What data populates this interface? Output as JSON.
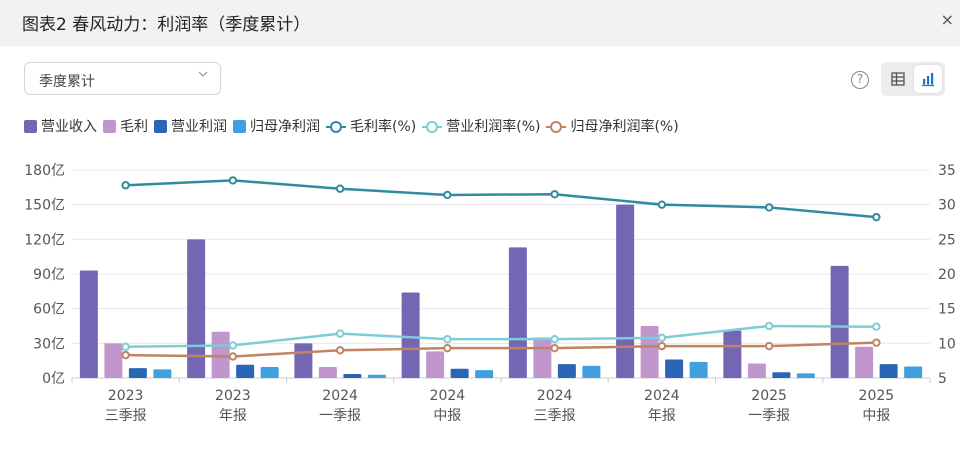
{
  "header": {
    "title": "图表2 春风动力：利润率（季度累计）",
    "close": "×"
  },
  "filter": {
    "selected": "季度累计"
  },
  "toolbar": {
    "help": "?"
  },
  "legend": [
    {
      "name": "营业收入",
      "kind": "bar",
      "color": "#7566b4"
    },
    {
      "name": "毛利",
      "kind": "bar",
      "color": "#c196cc"
    },
    {
      "name": "营业利润",
      "kind": "bar",
      "color": "#2a66b5"
    },
    {
      "name": "归母净利润",
      "kind": "bar",
      "color": "#3fa0e0"
    },
    {
      "name": "毛利率(%)",
      "kind": "line",
      "color": "#2f8ba0"
    },
    {
      "name": "营业利润率(%)",
      "kind": "line",
      "color": "#7dcdd6"
    },
    {
      "name": "归母净利润率(%)",
      "kind": "line",
      "color": "#c08560"
    }
  ],
  "chart_data": {
    "type": "bar+line",
    "categories": [
      [
        "2023",
        "三季报"
      ],
      [
        "2023",
        "年报"
      ],
      [
        "2024",
        "一季报"
      ],
      [
        "2024",
        "中报"
      ],
      [
        "2024",
        "三季报"
      ],
      [
        "2024",
        "年报"
      ],
      [
        "2025",
        "一季报"
      ],
      [
        "2025",
        "中报"
      ]
    ],
    "y_left": {
      "ticks": [
        "0亿",
        "30亿",
        "60亿",
        "90亿",
        "120亿",
        "150亿",
        "180亿"
      ],
      "min": 0,
      "max": 180
    },
    "y_right": {
      "ticks": [
        "5",
        "10",
        "15",
        "20",
        "25",
        "30",
        "35"
      ],
      "min": 5,
      "max": 35
    },
    "bar_series": [
      {
        "name": "营业收入",
        "color": "#7566b4",
        "values": [
          93,
          120,
          30,
          74,
          113,
          150,
          41,
          97
        ]
      },
      {
        "name": "毛利",
        "color": "#c196cc",
        "values": [
          30,
          40,
          9.5,
          23,
          35,
          45,
          12.5,
          27
        ]
      },
      {
        "name": "营业利润",
        "color": "#2a66b5",
        "values": [
          8.5,
          11.5,
          3.5,
          8,
          12,
          16,
          5,
          12
        ]
      },
      {
        "name": "归母净利润",
        "color": "#3fa0e0",
        "values": [
          7.5,
          9.5,
          2.8,
          6.8,
          10.5,
          14,
          4,
          10
        ]
      }
    ],
    "line_series": [
      {
        "name": "毛利率(%)",
        "color": "#2f8ba0",
        "values": [
          32.8,
          33.5,
          32.3,
          31.4,
          31.5,
          30.0,
          29.6,
          28.2
        ]
      },
      {
        "name": "营业利润率(%)",
        "color": "#7dcdd6",
        "values": [
          9.5,
          9.7,
          11.4,
          10.6,
          10.6,
          10.8,
          12.5,
          12.4
        ]
      },
      {
        "name": "归母净利润率(%)",
        "color": "#c08560",
        "values": [
          8.3,
          8.1,
          9.0,
          9.3,
          9.3,
          9.6,
          9.6,
          10.1
        ]
      }
    ],
    "grid": true
  }
}
